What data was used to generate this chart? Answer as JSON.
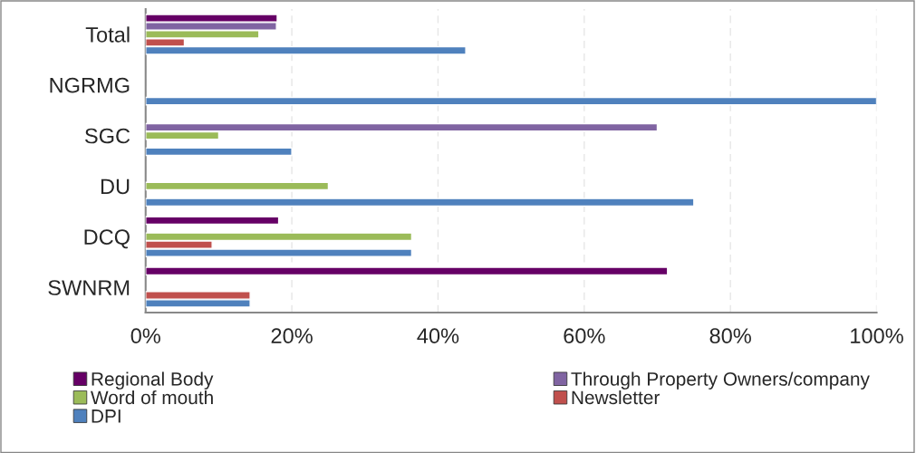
{
  "chart_data": {
    "type": "bar",
    "orientation": "horizontal",
    "categories": [
      "Total",
      "NGRMG",
      "SGC",
      "DU",
      "DCQ",
      "SWNRM"
    ],
    "series": [
      {
        "name": "Regional Body",
        "color": "#660066",
        "values": [
          18.0,
          null,
          null,
          null,
          18.2,
          71.4
        ]
      },
      {
        "name": "Through Property Owners/company",
        "color": "#8064a2",
        "values": [
          17.9,
          null,
          70,
          null,
          null,
          null
        ]
      },
      {
        "name": "Word of mouth",
        "color": "#9bbb59",
        "values": [
          15.5,
          null,
          10,
          25,
          36.4,
          null
        ]
      },
      {
        "name": "Newsletter",
        "color": "#c0504d",
        "values": [
          5.3,
          null,
          null,
          null,
          9.1,
          14.3
        ]
      },
      {
        "name": "DPI",
        "color": "#4f81bd",
        "values": [
          43.8,
          100,
          20,
          75,
          36.4,
          14.3
        ]
      }
    ],
    "xlim": [
      0,
      100
    ],
    "xticks": [
      {
        "value": 0,
        "label": "0%"
      },
      {
        "value": 20,
        "label": "20%"
      },
      {
        "value": 40,
        "label": "40%"
      },
      {
        "value": 60,
        "label": "60%"
      },
      {
        "value": 80,
        "label": "80%"
      },
      {
        "value": 100,
        "label": "100%"
      }
    ],
    "grid": "x",
    "legend": "bottom"
  }
}
